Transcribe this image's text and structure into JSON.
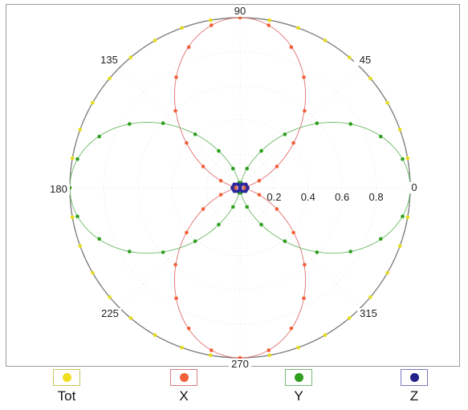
{
  "chart_data": {
    "type": "scatter",
    "subtype": "polar",
    "theta_unit": "degrees",
    "r_range": [
      0,
      1
    ],
    "angle_labels": [
      "0",
      "45",
      "90",
      "135",
      "180",
      "225",
      "270",
      "315"
    ],
    "radial_labels": [
      "0.2",
      "0.4",
      "0.6",
      "0.8"
    ],
    "legend_position": "bottom",
    "grid": true,
    "series": [
      {
        "name": "Tot",
        "color": "#e6dc1a",
        "line_color": "#8a8a8a",
        "model": "r = 1",
        "theta": [
          0,
          10,
          20,
          30,
          40,
          50,
          60,
          70,
          80,
          90,
          100,
          110,
          120,
          130,
          140,
          150,
          160,
          170,
          180,
          190,
          200,
          210,
          220,
          230,
          240,
          250,
          260,
          270,
          280,
          290,
          300,
          310,
          320,
          330,
          340,
          350
        ],
        "r": [
          1,
          1,
          1,
          1,
          1,
          1,
          1,
          1,
          1,
          1,
          1,
          1,
          1,
          1,
          1,
          1,
          1,
          1,
          1,
          1,
          1,
          1,
          1,
          1,
          1,
          1,
          1,
          1,
          1,
          1,
          1,
          1,
          1,
          1,
          1,
          1
        ]
      },
      {
        "name": "X",
        "color": "#f0603a",
        "line_color": "#e07070",
        "model": "r = sin²θ",
        "theta": [
          0,
          10,
          20,
          30,
          40,
          50,
          60,
          70,
          80,
          90,
          100,
          110,
          120,
          130,
          140,
          150,
          160,
          170,
          180,
          190,
          200,
          210,
          220,
          230,
          240,
          250,
          260,
          270,
          280,
          290,
          300,
          310,
          320,
          330,
          340,
          350
        ],
        "r": [
          0,
          0.03,
          0.12,
          0.25,
          0.41,
          0.59,
          0.75,
          0.88,
          0.97,
          1,
          0.97,
          0.88,
          0.75,
          0.59,
          0.41,
          0.25,
          0.12,
          0.03,
          0,
          0.03,
          0.12,
          0.25,
          0.41,
          0.59,
          0.75,
          0.88,
          0.97,
          1,
          0.97,
          0.88,
          0.75,
          0.59,
          0.41,
          0.25,
          0.12,
          0.03
        ]
      },
      {
        "name": "Y",
        "color": "#2e9e1e",
        "line_color": "#6ab86a",
        "model": "r = cos²θ",
        "theta": [
          0,
          10,
          20,
          30,
          40,
          50,
          60,
          70,
          80,
          90,
          100,
          110,
          120,
          130,
          140,
          150,
          160,
          170,
          180,
          190,
          200,
          210,
          220,
          230,
          240,
          250,
          260,
          270,
          280,
          290,
          300,
          310,
          320,
          330,
          340,
          350
        ],
        "r": [
          1,
          0.97,
          0.88,
          0.75,
          0.59,
          0.41,
          0.25,
          0.12,
          0.03,
          0,
          0.03,
          0.12,
          0.25,
          0.41,
          0.59,
          0.75,
          0.88,
          0.97,
          1,
          0.97,
          0.88,
          0.75,
          0.59,
          0.41,
          0.25,
          0.12,
          0.03,
          0,
          0.03,
          0.12,
          0.25,
          0.41,
          0.59,
          0.75,
          0.88,
          0.97
        ]
      },
      {
        "name": "Z",
        "color": "#2a2a9a",
        "line_color": "#2a2aa8",
        "model": "r = 0.045·|cos θ|",
        "theta": [
          0,
          30,
          60,
          90,
          120,
          150,
          180,
          210,
          240,
          270,
          300,
          330
        ],
        "r": [
          0.045,
          0.039,
          0.022,
          0,
          0.022,
          0.039,
          0.045,
          0.039,
          0.022,
          0,
          0.022,
          0.039
        ]
      }
    ]
  },
  "legend": {
    "items": [
      {
        "label": "Tot",
        "color": "#f0e020",
        "border": "#c8c860"
      },
      {
        "label": "X",
        "color": "#f0603a",
        "border": "#d88080"
      },
      {
        "label": "Y",
        "color": "#2e9e1e",
        "border": "#78b878"
      },
      {
        "label": "Z",
        "color": "#22228a",
        "border": "#7878c0"
      }
    ]
  }
}
